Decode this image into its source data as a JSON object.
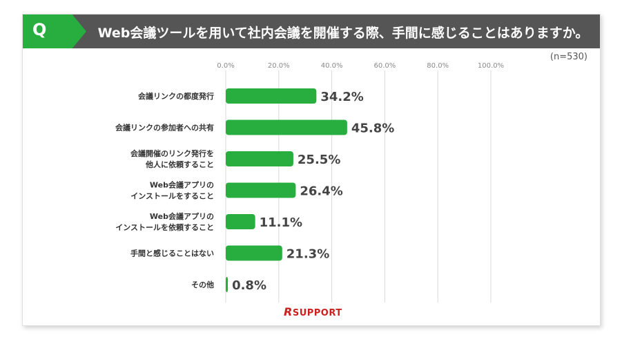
{
  "header": {
    "badge": "Q",
    "title": "Web会議ツールを用いて社内会議を開催する際、手間に感じることはありますか。"
  },
  "sample_note": "(n=530)",
  "logo": {
    "r": "R",
    "text": "SUPPORT"
  },
  "colors": {
    "bar": "#27ae3f",
    "header_bg": "#555555",
    "badge": "#27ae3f",
    "logo": "#cc1f1f"
  },
  "chart_data": {
    "type": "bar",
    "orientation": "horizontal",
    "title": "",
    "xlim": [
      0,
      100
    ],
    "x_ticks": [
      "0.0%",
      "20.0%",
      "40.0%",
      "60.0%",
      "80.0%",
      "100.0%"
    ],
    "categories": [
      [
        "会議リンクの都度発行"
      ],
      [
        "会議リンクの参加者への共有"
      ],
      [
        "会議開催のリンク発行を",
        "他人に依頼すること"
      ],
      [
        "Web会議アプリの",
        "インストールをすること"
      ],
      [
        "Web会議アプリの",
        "インストールを依頼すること"
      ],
      [
        "手間と感じることはない"
      ],
      [
        "その他"
      ]
    ],
    "values": [
      34.2,
      45.8,
      25.5,
      26.4,
      11.1,
      21.3,
      0.8
    ],
    "value_labels": [
      "34.2%",
      "45.8%",
      "25.5%",
      "26.4%",
      "11.1%",
      "21.3%",
      "0.8%"
    ],
    "grid": true
  }
}
